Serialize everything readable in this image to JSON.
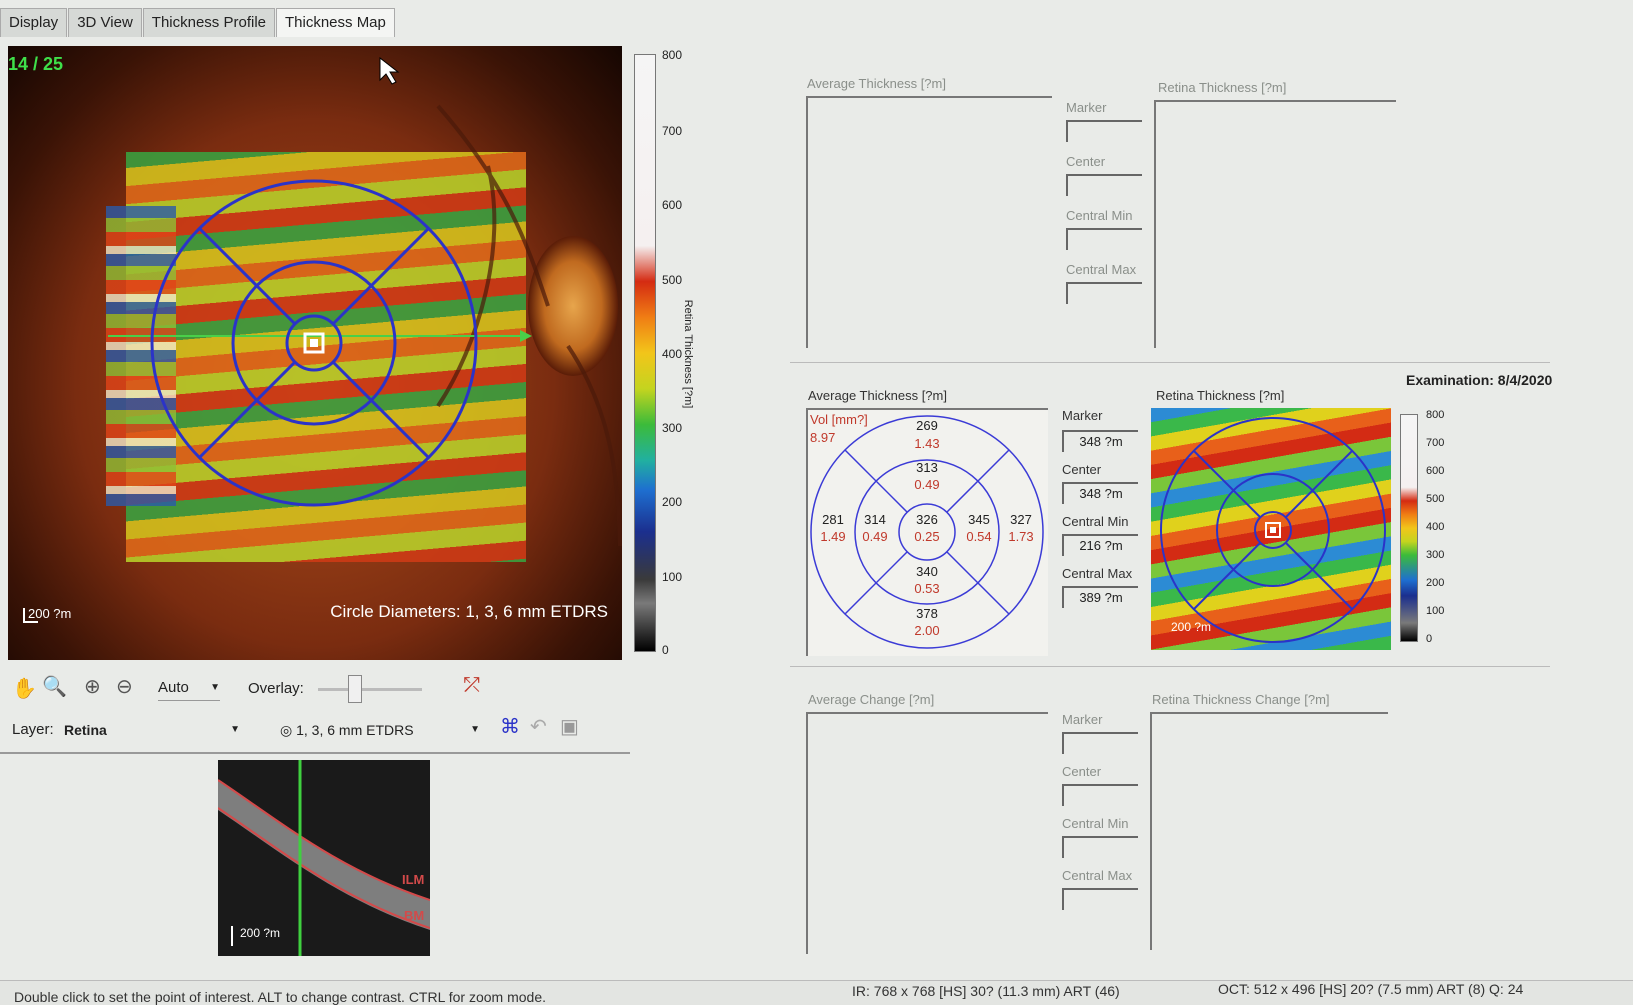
{
  "tabs": [
    "Display",
    "3D View",
    "Thickness Profile",
    "Thickness Map"
  ],
  "active_tab": "Thickness Map",
  "fundus": {
    "frame_counter": "14 / 25",
    "scale_label": "200 ?m",
    "circle_label": "Circle Diameters: 1, 3, 6 mm ETDRS"
  },
  "colorbar": {
    "ticks": [
      "800",
      "700",
      "600",
      "500",
      "400",
      "300",
      "200",
      "100",
      "0"
    ],
    "label": "Retina Thickness [?m]"
  },
  "toolbar": {
    "zoom_mode": "Auto",
    "overlay_label": "Overlay:",
    "overlay_level": 0.35
  },
  "layer": {
    "label": "Layer:",
    "value": "Retina",
    "grid_value": "1, 3, 6 mm ETDRS"
  },
  "bscan": {
    "scale_label": "200 ?m",
    "ilm_label": "ILM",
    "bm_label": "BM"
  },
  "top_panel": {
    "avg_title": "Average Thickness [?m]",
    "retina_title": "Retina Thickness [?m]",
    "marker": "Marker",
    "center": "Center",
    "central_min": "Central Min",
    "central_max": "Central Max"
  },
  "exam": {
    "label": "Examination: 8/4/2020"
  },
  "mid_panel": {
    "avg_title": "Average Thickness [?m]",
    "retina_title": "Retina Thickness [?m]",
    "vol_label": "Vol [mm?]",
    "vol_value": "8.97",
    "sectors": {
      "outer_top": {
        "t": "269",
        "v": "1.43"
      },
      "inner_top": {
        "t": "313",
        "v": "0.49"
      },
      "outer_left": {
        "t": "281",
        "v": "1.49"
      },
      "inner_left": {
        "t": "314",
        "v": "0.49"
      },
      "center": {
        "t": "326",
        "v": "0.25"
      },
      "inner_right": {
        "t": "345",
        "v": "0.54"
      },
      "outer_right": {
        "t": "327",
        "v": "1.73"
      },
      "inner_bottom": {
        "t": "340",
        "v": "0.53"
      },
      "outer_bottom": {
        "t": "378",
        "v": "2.00"
      }
    },
    "marker": "Marker",
    "marker_value": "348 ?m",
    "center": "Center",
    "center_value": "348 ?m",
    "central_min": "Central Min",
    "central_min_value": "216 ?m",
    "central_max": "Central Max",
    "central_max_value": "389 ?m",
    "scale_label": "200 ?m",
    "mini_ticks": [
      "800",
      "700",
      "600",
      "500",
      "400",
      "300",
      "200",
      "100",
      "0"
    ]
  },
  "bottom_panel": {
    "avg_title": "Average Change [?m]",
    "retina_title": "Retina Thickness Change [?m]",
    "marker": "Marker",
    "center": "Center",
    "central_min": "Central Min",
    "central_max": "Central Max"
  },
  "status": {
    "hint": "Double click to set the point of interest. ALT to change contrast. CTRL for zoom mode.",
    "ir": "IR: 768 x 768 [HS] 30? (11.3 mm) ART (46)",
    "oct": "OCT: 512 x 496 [HS] 20? (7.5 mm) ART (8) Q: 24"
  }
}
